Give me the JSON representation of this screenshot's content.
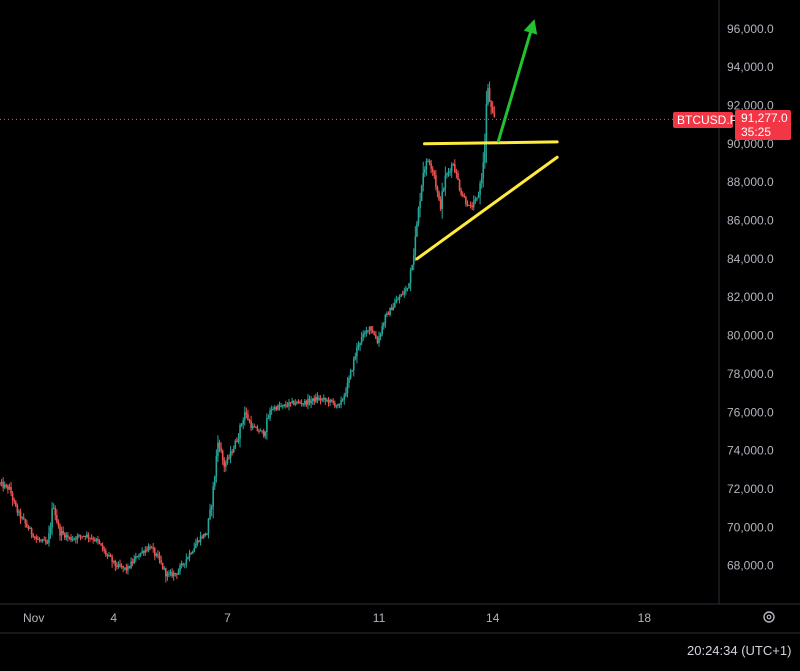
{
  "chart_data": {
    "type": "candlestick",
    "symbol": "BTCUSD.P",
    "last_price": 91277.0,
    "last_price_label": "91,277.0",
    "countdown": "35:25",
    "ylim": [
      66000,
      97500
    ],
    "y_ticks": [
      68000,
      70000,
      72000,
      74000,
      76000,
      78000,
      80000,
      82000,
      84000,
      86000,
      88000,
      90000,
      92000,
      94000,
      96000
    ],
    "y_tick_labels": [
      "68,000.0",
      "70,000.0",
      "72,000.0",
      "74,000.0",
      "76,000.0",
      "78,000.0",
      "80,000.0",
      "82,000.0",
      "84,000.0",
      "86,000.0",
      "88,000.0",
      "90,000.0",
      "92,000.0",
      "94,000.0",
      "96,000.0"
    ],
    "xlim": [
      0,
      18.97
    ],
    "x_ticks": [
      {
        "x": 0,
        "label": "Nov"
      },
      {
        "x": 3,
        "label": "4"
      },
      {
        "x": 6,
        "label": "7"
      },
      {
        "x": 10,
        "label": "11"
      },
      {
        "x": 13,
        "label": "14"
      },
      {
        "x": 17,
        "label": "18"
      }
    ],
    "path_points": [
      [
        0.0,
        72300
      ],
      [
        0.3,
        72000
      ],
      [
        0.45,
        71000
      ],
      [
        0.7,
        70200
      ],
      [
        1.0,
        69400
      ],
      [
        1.3,
        69100
      ],
      [
        1.45,
        71200
      ],
      [
        1.6,
        69800
      ],
      [
        1.9,
        69400
      ],
      [
        2.3,
        69600
      ],
      [
        2.6,
        69300
      ],
      [
        2.8,
        68700
      ],
      [
        3.1,
        68000
      ],
      [
        3.4,
        67800
      ],
      [
        3.7,
        68600
      ],
      [
        4.0,
        69000
      ],
      [
        4.2,
        68400
      ],
      [
        4.45,
        67500
      ],
      [
        4.7,
        67600
      ],
      [
        5.0,
        68500
      ],
      [
        5.3,
        69400
      ],
      [
        5.5,
        69700
      ],
      [
        5.65,
        71600
      ],
      [
        5.8,
        74600
      ],
      [
        5.95,
        73200
      ],
      [
        6.1,
        73700
      ],
      [
        6.3,
        74600
      ],
      [
        6.5,
        76000
      ],
      [
        6.7,
        75200
      ],
      [
        7.0,
        74900
      ],
      [
        7.2,
        76200
      ],
      [
        7.5,
        76300
      ],
      [
        7.8,
        76500
      ],
      [
        8.1,
        76500
      ],
      [
        8.4,
        76700
      ],
      [
        8.7,
        76600
      ],
      [
        9.0,
        76300
      ],
      [
        9.2,
        77300
      ],
      [
        9.5,
        79600
      ],
      [
        9.8,
        80500
      ],
      [
        10.0,
        79700
      ],
      [
        10.2,
        80900
      ],
      [
        10.5,
        81800
      ],
      [
        10.8,
        82500
      ],
      [
        11.0,
        85000
      ],
      [
        11.2,
        88600
      ],
      [
        11.35,
        89200
      ],
      [
        11.5,
        88400
      ],
      [
        11.65,
        86600
      ],
      [
        11.8,
        88300
      ],
      [
        12.0,
        89000
      ],
      [
        12.2,
        87500
      ],
      [
        12.45,
        86600
      ],
      [
        12.65,
        87200
      ],
      [
        12.8,
        89000
      ],
      [
        12.9,
        92900
      ],
      [
        13.0,
        91800
      ],
      [
        13.05,
        91277
      ]
    ],
    "annotations": [
      {
        "type": "trendline",
        "color": "#ffeb3b",
        "from": [
          11.2,
          90000
        ],
        "to": [
          14.7,
          90100
        ]
      },
      {
        "type": "trendline",
        "color": "#ffeb3b",
        "from": [
          11.0,
          84000
        ],
        "to": [
          14.7,
          89300
        ]
      },
      {
        "type": "arrow",
        "color": "#22c32e",
        "from": [
          13.15,
          90150
        ],
        "to": [
          14.1,
          96500
        ]
      }
    ],
    "colors": {
      "up": "#26a69a",
      "down": "#ef5350",
      "price_line": "#ef5350",
      "badge": "#f23645",
      "axis_text": "#b2b5be",
      "separator": "#2a2e39"
    }
  },
  "status_bar": {
    "clock": "20:24:34 (UTC+1)"
  },
  "icons": {
    "settings": "gear-icon"
  }
}
